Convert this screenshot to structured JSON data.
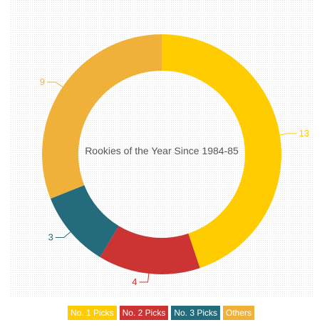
{
  "chart_data": {
    "type": "pie",
    "donut": true,
    "title": "Rookies of the Year Since 1984-85",
    "categories": [
      "No. 1 Picks",
      "No. 2 Picks",
      "No. 3 Picks",
      "Others"
    ],
    "values": [
      13,
      4,
      3,
      9
    ],
    "colors": [
      "#ffcc00",
      "#cc3333",
      "#246c7c",
      "#f0b13a"
    ],
    "legend_placement": "bottom",
    "data_labels": [
      "13",
      "4",
      "3",
      "9"
    ]
  },
  "legend": {
    "items": [
      {
        "label": "No. 1 Picks",
        "color": "#ffcc00"
      },
      {
        "label": "No. 2 Picks",
        "color": "#cc3333"
      },
      {
        "label": "No. 3 Picks",
        "color": "#246c7c"
      },
      {
        "label": "Others",
        "color": "#f0b13a"
      }
    ]
  }
}
